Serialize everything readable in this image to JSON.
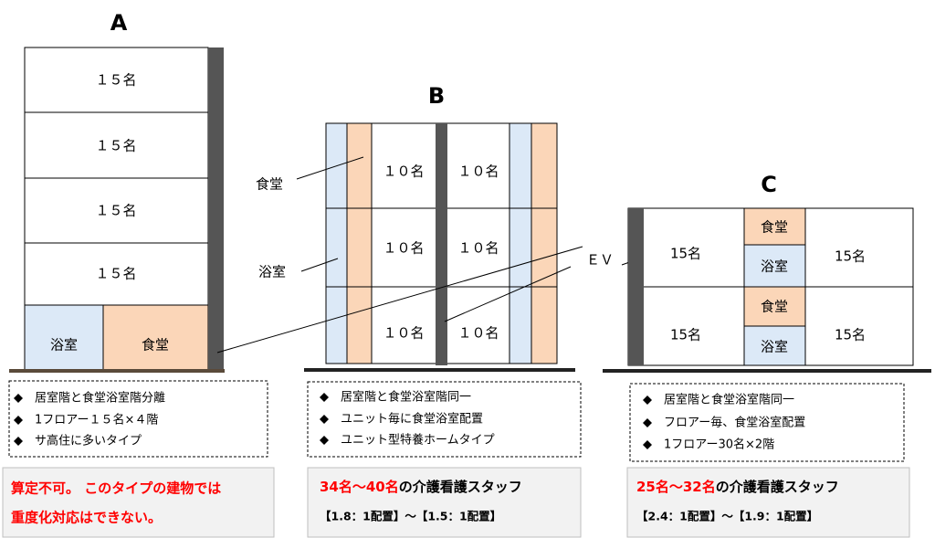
{
  "ev_label": "ＥＶ",
  "buildings": [
    {
      "title": "A",
      "floors": [
        "１５名",
        "１５名",
        "１５名",
        "１５名"
      ],
      "bath": "浴室",
      "dining": "食堂",
      "notes": [
        "居室階と食堂浴室階分離",
        "1フロアー１５名×４階",
        "サ高住に多いタイプ"
      ],
      "summary": [
        "算定不可。 このタイプの建物では",
        "重度化対応はできない。"
      ]
    },
    {
      "title": "B",
      "rooms": [
        [
          "１０名",
          "１０名"
        ],
        [
          "１０名",
          "１０名"
        ],
        [
          "１０名",
          "１０名"
        ]
      ],
      "dining": "食堂",
      "bath": "浴室",
      "notes": [
        "居室階と食堂浴室階同一",
        "ユニット毎に食堂浴室配置",
        "ユニット型特養ホームタイプ"
      ],
      "summary": {
        "staff": "34名～40名",
        "staff_suffix": "の介護看護スタッフ",
        "ratio": "【1.8：1配置】～【1.5：1配置】"
      }
    },
    {
      "title": "C",
      "rooms": [
        [
          "15名",
          "15名"
        ],
        [
          "15名",
          "15名"
        ]
      ],
      "dining": "食堂",
      "bath": "浴室",
      "notes": [
        "居室階と食堂浴室階同一",
        "フロアー毎、食堂浴室配置",
        "1フロアー30名×2階"
      ],
      "summary": {
        "staff": "25名～32名",
        "staff_suffix": "の介護看護スタッフ",
        "ratio": "【2.4：1配置】～【1.9：1配置】"
      }
    }
  ]
}
